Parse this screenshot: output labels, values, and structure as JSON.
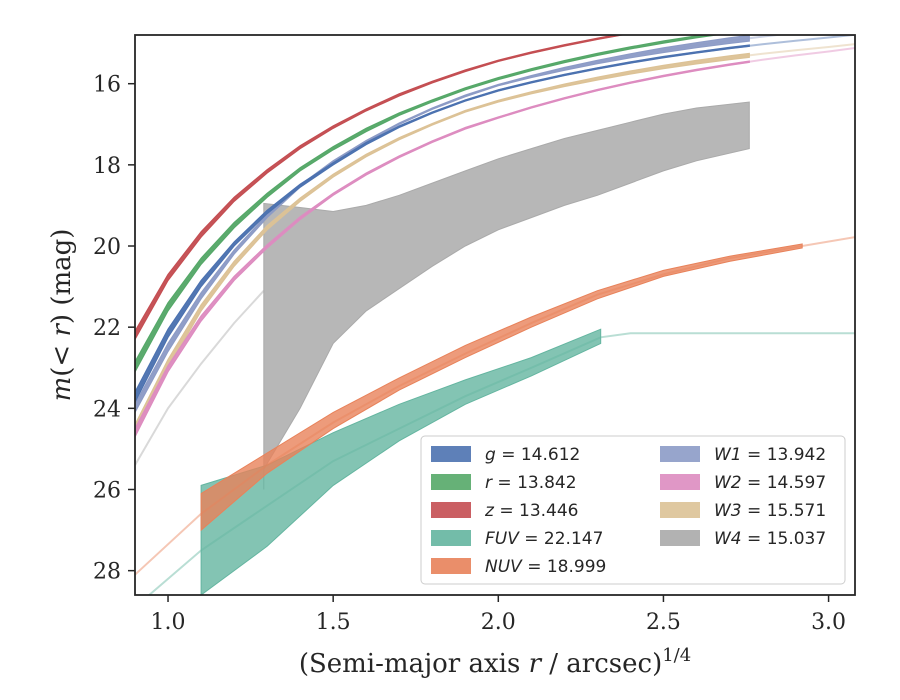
{
  "chart_data": {
    "type": "line",
    "xlabel": "(Semi-major axis r / arcsec)^1/4",
    "ylabel": "m(< r) (mag)",
    "xlim": [
      0.9,
      3.08
    ],
    "ylim": [
      28.6,
      14.8
    ],
    "y_inverted": true,
    "x_ticks": [
      "1.0",
      "1.5",
      "2.0",
      "2.5",
      "3.0"
    ],
    "y_ticks": [
      "16",
      "18",
      "20",
      "22",
      "24",
      "26",
      "28"
    ],
    "grid": false,
    "legend_position": "lower-right",
    "legend_columns": 2,
    "series": [
      {
        "name": "g",
        "total": "14.612",
        "color": "#4c72b0",
        "x_start": 0.9,
        "x_end": 2.76,
        "x_end_faded": 3.08,
        "upper": [
          23.85,
          22.25,
          21.0,
          20.0,
          19.2,
          18.55,
          18.0,
          17.5,
          17.08,
          16.73,
          16.43,
          16.18,
          15.98
        ],
        "lower": [
          23.6,
          22.05,
          20.85,
          19.9,
          19.12,
          18.48,
          17.95,
          17.45,
          17.04,
          16.7,
          16.4,
          16.15,
          15.95
        ]
      },
      {
        "name": "r",
        "total": "13.842",
        "color": "#55a868",
        "x_start": 0.9,
        "x_end": 2.92,
        "x_end_faded": 3.08,
        "upper": [
          23.1,
          21.6,
          20.45,
          19.55,
          18.8,
          18.15,
          17.63,
          17.18,
          16.78,
          16.45,
          16.15,
          15.9,
          15.68
        ],
        "lower": [
          22.85,
          21.4,
          20.3,
          19.42,
          18.7,
          18.07,
          17.55,
          17.1,
          16.72,
          16.4,
          16.1,
          15.85,
          15.63
        ]
      },
      {
        "name": "z",
        "total": "13.446",
        "color": "#c44e52",
        "x_start": 0.9,
        "x_end": 2.92,
        "x_end_faded": 3.08,
        "upper": [
          22.3,
          20.85,
          19.78,
          18.9,
          18.2,
          17.6,
          17.1,
          16.67,
          16.3,
          15.98,
          15.7,
          15.45,
          15.25
        ],
        "lower": [
          22.1,
          20.7,
          19.65,
          18.8,
          18.12,
          17.53,
          17.04,
          16.62,
          16.25,
          15.94,
          15.66,
          15.42,
          15.22
        ]
      },
      {
        "name": "FUV",
        "total": "22.147",
        "color": "#64b5a0",
        "x_start": 1.1,
        "x_end": 2.31,
        "x_end_faded": 3.08,
        "band_x": [
          1.1,
          1.3,
          1.5,
          1.7,
          1.9,
          2.1,
          2.31
        ],
        "band_upper": [
          25.9,
          25.4,
          24.6,
          23.9,
          23.3,
          22.75,
          22.05
        ],
        "band_lower": [
          28.6,
          27.4,
          25.9,
          24.8,
          23.9,
          23.2,
          22.4
        ],
        "faded_x": [
          0.9,
          1.1,
          1.3,
          1.5,
          1.7,
          1.9,
          2.1,
          2.31,
          2.4,
          2.7,
          3.08
        ],
        "faded_y": [
          28.9,
          27.5,
          26.4,
          25.3,
          24.5,
          23.7,
          23.0,
          22.25,
          22.15,
          22.15,
          22.15
        ]
      },
      {
        "name": "NUV",
        "total": "18.999",
        "color": "#e8825a",
        "x_start": 1.1,
        "x_end": 2.92,
        "x_end_faded": 3.08,
        "band_x": [
          1.1,
          1.3,
          1.5,
          1.7,
          1.9,
          2.1,
          2.3,
          2.5,
          2.7,
          2.92
        ],
        "band_upper": [
          26.1,
          25.1,
          24.1,
          23.25,
          22.45,
          21.75,
          21.1,
          20.6,
          20.25,
          19.95
        ],
        "band_lower": [
          27.0,
          25.6,
          24.5,
          23.55,
          22.75,
          22.0,
          21.3,
          20.75,
          20.38,
          20.05
        ],
        "faded_x": [
          0.9,
          1.1,
          1.3,
          1.5,
          1.7,
          1.9,
          2.1,
          2.3,
          2.5,
          2.7,
          2.92,
          3.08
        ],
        "faded_y": [
          28.1,
          26.6,
          25.4,
          24.35,
          23.45,
          22.65,
          21.9,
          21.2,
          20.7,
          20.3,
          20.0,
          19.78
        ]
      },
      {
        "name": "W1",
        "total": "13.942",
        "color": "#8c9bc6",
        "x_start": 0.9,
        "x_end": 2.76,
        "x_end_faded": 3.08,
        "upper": [
          24.1,
          22.6,
          21.3,
          20.2,
          19.3,
          18.55,
          17.95,
          17.43,
          17.0,
          16.63,
          16.32,
          16.05,
          15.85
        ],
        "lower": [
          23.9,
          22.4,
          21.15,
          20.1,
          19.22,
          18.5,
          17.9,
          17.4,
          16.97,
          16.6,
          16.28,
          16.02,
          15.8
        ]
      },
      {
        "name": "W2",
        "total": "14.597",
        "color": "#dd8cc0",
        "x_start": 0.9,
        "x_end": 2.76,
        "x_end_faded": 3.08,
        "upper": [
          24.7,
          23.1,
          21.85,
          20.85,
          20.05,
          19.35,
          18.75,
          18.25,
          17.82,
          17.45,
          17.12,
          16.85,
          16.6
        ],
        "lower": [
          24.5,
          22.95,
          21.72,
          20.75,
          19.97,
          19.28,
          18.7,
          18.2,
          17.78,
          17.41,
          17.08,
          16.82,
          16.57
        ]
      },
      {
        "name": "W3",
        "total": "15.571",
        "color": "#dcc296",
        "x_start": 0.9,
        "x_end": 2.76,
        "x_end_faded": 3.08,
        "upper": [
          24.7,
          23.0,
          21.6,
          20.5,
          19.6,
          18.9,
          18.3,
          17.8,
          17.38,
          17.02,
          16.7,
          16.45,
          16.25
        ],
        "lower": [
          24.4,
          22.8,
          21.45,
          20.38,
          19.5,
          18.82,
          18.23,
          17.74,
          17.33,
          16.98,
          16.66,
          16.41,
          16.2
        ]
      },
      {
        "name": "W4",
        "total": "15.037",
        "color": "#aaaaaa",
        "x_start": 1.29,
        "x_end": 2.76,
        "x_end_faded": 0.9,
        "band_x": [
          1.29,
          1.29,
          1.4,
          1.5,
          1.6,
          1.7,
          1.8,
          1.9,
          2.0,
          2.1,
          2.2,
          2.3,
          2.4,
          2.5,
          2.6,
          2.76
        ],
        "band_upper": [
          26.0,
          18.95,
          19.05,
          19.15,
          19.0,
          18.75,
          18.45,
          18.15,
          17.85,
          17.6,
          17.35,
          17.15,
          16.95,
          16.75,
          16.6,
          16.45
        ],
        "band_lower": [
          26.0,
          25.5,
          24.0,
          22.4,
          21.6,
          21.05,
          20.5,
          20.0,
          19.6,
          19.3,
          19.0,
          18.75,
          18.45,
          18.15,
          17.9,
          17.6
        ],
        "faded_x": [
          0.9,
          1.0,
          1.1,
          1.2,
          1.29
        ],
        "faded_y": [
          25.4,
          24.0,
          22.9,
          21.9,
          21.1
        ]
      }
    ],
    "common_x": [
      0.9,
      1.0,
      1.1,
      1.2,
      1.3,
      1.4,
      1.5,
      1.6,
      1.7,
      1.8,
      1.9,
      2.0,
      2.1
    ],
    "tail_x": [
      2.1,
      2.2,
      2.3,
      2.4,
      2.5,
      2.6,
      2.7,
      2.8,
      2.9,
      3.0,
      3.08
    ]
  },
  "legend": {
    "col1": [
      {
        "var": "g",
        "value": "14.612",
        "color": "#4c72b0"
      },
      {
        "var": "r",
        "value": "13.842",
        "color": "#55a868"
      },
      {
        "var": "z",
        "value": "13.446",
        "color": "#c44e52"
      },
      {
        "var": "FUV",
        "value": "22.147",
        "color": "#64b5a0"
      },
      {
        "var": "NUV",
        "value": "18.999",
        "color": "#e8825a"
      }
    ],
    "col2": [
      {
        "var": "W1",
        "value": "13.942",
        "color": "#8c9bc6"
      },
      {
        "var": "W2",
        "value": "14.597",
        "color": "#dd8cc0"
      },
      {
        "var": "W3",
        "value": "15.571",
        "color": "#dcc296"
      },
      {
        "var": "W4",
        "value": "15.037",
        "color": "#aaaaaa"
      }
    ]
  }
}
